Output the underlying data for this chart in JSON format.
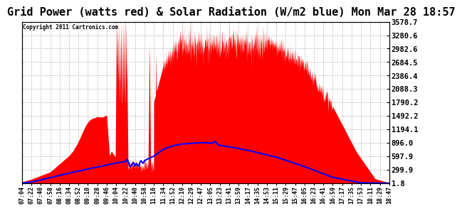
{
  "title": "Grid Power (watts red) & Solar Radiation (W/m2 blue) Mon Mar 28 18:57",
  "copyright": "Copyright 2011 Cartronics.com",
  "background_color": "#ffffff",
  "plot_bg_color": "#ffffff",
  "yticks": [
    1.8,
    299.9,
    597.9,
    896.0,
    1194.1,
    1492.2,
    1790.2,
    2088.3,
    2386.4,
    2684.5,
    2982.6,
    3280.6,
    3578.7
  ],
  "ylim": [
    1.8,
    3578.7
  ],
  "red_color": "#ff0000",
  "blue_color": "#0000ff",
  "grid_color": "#bbbbbb",
  "title_fontsize": 11,
  "xtick_fontsize": 6.0,
  "ytick_fontsize": 7.5,
  "xtick_labels": [
    "07:04",
    "07:22",
    "07:40",
    "07:58",
    "08:16",
    "08:34",
    "08:52",
    "09:10",
    "09:28",
    "09:46",
    "10:04",
    "10:22",
    "10:40",
    "10:58",
    "11:16",
    "11:34",
    "11:52",
    "12:10",
    "12:29",
    "12:47",
    "13:05",
    "13:23",
    "13:41",
    "13:59",
    "14:17",
    "14:35",
    "14:53",
    "15:11",
    "15:29",
    "15:47",
    "16:05",
    "16:23",
    "16:41",
    "16:59",
    "17:17",
    "17:35",
    "17:53",
    "18:11",
    "18:29",
    "18:47"
  ]
}
